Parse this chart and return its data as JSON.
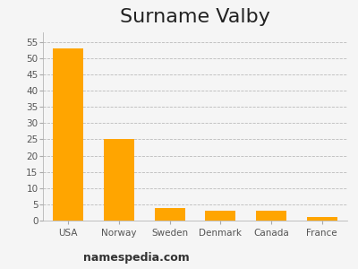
{
  "title": "Surname Valby",
  "categories": [
    "USA",
    "Norway",
    "Sweden",
    "Denmark",
    "Canada",
    "France"
  ],
  "values": [
    53,
    25,
    4,
    3,
    3,
    1
  ],
  "bar_color": "#FFA500",
  "background_color": "#f5f5f5",
  "ylim": [
    0,
    58
  ],
  "yticks": [
    0,
    5,
    10,
    15,
    20,
    25,
    30,
    35,
    40,
    45,
    50,
    55
  ],
  "grid_color": "#bbbbbb",
  "title_fontsize": 16,
  "tick_fontsize": 7.5,
  "footer_text": "namespedia.com",
  "footer_fontsize": 9
}
